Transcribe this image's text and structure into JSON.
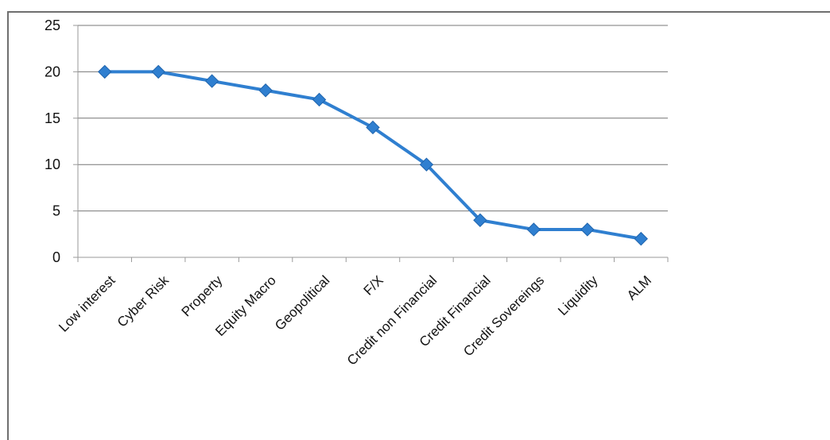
{
  "chart_data": {
    "type": "line",
    "categories": [
      "Low interest",
      "Cyber Risk",
      "Property",
      "Equity Macro",
      "Geopolitical",
      "F/X",
      "Credit non Financial",
      "Credit Financial",
      "Credit Sovereings",
      "Liquidity",
      "ALM"
    ],
    "values": [
      20,
      20,
      19,
      18,
      17,
      14,
      10,
      4,
      3,
      3,
      2
    ],
    "ylim": [
      0,
      25
    ],
    "yticks": [
      "0",
      "5",
      "10",
      "15",
      "20",
      "25"
    ],
    "grid": true,
    "legend": "none",
    "colors": {
      "line": "#2f7fd0",
      "marker": "#2f7fd0",
      "grid": "#777777",
      "axis": "#9a9a9a"
    }
  }
}
